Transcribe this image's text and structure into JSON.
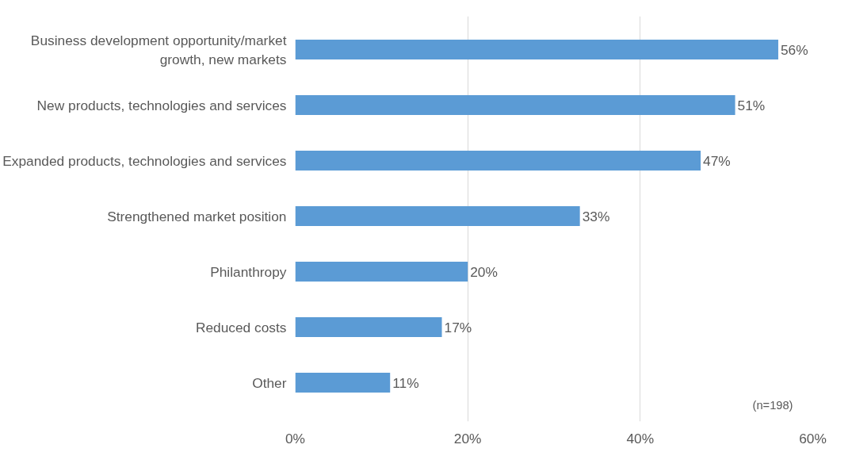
{
  "chart_data": {
    "type": "bar",
    "orientation": "horizontal",
    "categories": [
      "Business development opportunity/market growth, new markets",
      "New products, technologies and services",
      "Expanded products, technologies and services",
      "Strengthened market position",
      "Philanthropy",
      "Reduced costs",
      "Other"
    ],
    "values": [
      56,
      51,
      47,
      33,
      20,
      17,
      11
    ],
    "value_labels": [
      "56%",
      "51%",
      "47%",
      "33%",
      "20%",
      "17%",
      "11%"
    ],
    "color": "#5b9bd5",
    "xlim": [
      0,
      60
    ],
    "xticks": [
      {
        "value": 0,
        "label": "0%"
      },
      {
        "value": 20,
        "label": "20%"
      },
      {
        "value": 40,
        "label": "40%"
      },
      {
        "value": 60,
        "label": "60%"
      }
    ],
    "grid": "x",
    "annotations": [
      "(n=198)"
    ]
  }
}
